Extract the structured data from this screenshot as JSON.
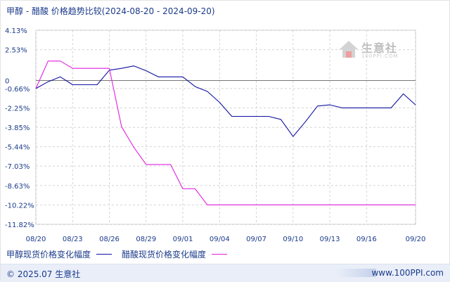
{
  "title": "甲醇 - 醋酸 价格趋势比较(2024-08-20 - 2024-09-20)",
  "watermark": {
    "name": "生意社",
    "url": "100PPI.COM"
  },
  "footer": {
    "copyright": "© 2025.07 生意社",
    "site": "www.100PPI.com"
  },
  "colors": {
    "series1": "#1010a0",
    "series2": "#e020e0",
    "zero_line": "#777777",
    "grid": "#d4d4d4",
    "axis_text": "#1a3a8a"
  },
  "chart_data": {
    "type": "line",
    "title": "甲醇 - 醋酸 价格趋势比较(2024-08-20 - 2024-09-20)",
    "xlabel": "",
    "ylabel": "",
    "x_ticks": [
      "08/20",
      "08/23",
      "08/26",
      "08/29",
      "09/01",
      "09/04",
      "09/07",
      "09/10",
      "09/13",
      "09/16",
      "09/20"
    ],
    "y_ticks": [
      "4.13%",
      "2.53%",
      "0",
      "-0.66%",
      "-2.25%",
      "-3.85%",
      "-5.44%",
      "-7.03%",
      "-8.63%",
      "-10.22%",
      "-11.82%"
    ],
    "ylim": [
      -11.82,
      4.13
    ],
    "grid": true,
    "legend_position": "bottom",
    "dates": [
      "08/20",
      "08/21",
      "08/22",
      "08/23",
      "08/24",
      "08/25",
      "08/26",
      "08/27",
      "08/28",
      "08/29",
      "08/30",
      "08/31",
      "09/01",
      "09/02",
      "09/03",
      "09/04",
      "09/05",
      "09/06",
      "09/07",
      "09/08",
      "09/09",
      "09/10",
      "09/11",
      "09/12",
      "09/13",
      "09/14",
      "09/15",
      "09/16",
      "09/17",
      "09/18",
      "09/19",
      "09/20"
    ],
    "series": [
      {
        "name": "甲醇现货价格变化幅度",
        "values": [
          -0.66,
          -0.1,
          0.3,
          -0.35,
          -0.35,
          -0.35,
          0.85,
          1.0,
          1.2,
          0.8,
          0.3,
          0.3,
          0.3,
          -0.5,
          -0.9,
          -1.8,
          -2.95,
          -2.95,
          -2.95,
          -2.95,
          -3.2,
          -4.6,
          -3.4,
          -2.1,
          -2.0,
          -2.25,
          -2.25,
          -2.25,
          -2.25,
          -2.25,
          -1.1,
          -2.0
        ]
      },
      {
        "name": "醋酸现货价格变化幅度",
        "values": [
          -0.66,
          1.6,
          1.6,
          1.0,
          1.0,
          1.0,
          1.0,
          -3.8,
          -5.5,
          -6.9,
          -6.9,
          -6.9,
          -8.9,
          -8.9,
          -10.22,
          -10.22,
          -10.22,
          -10.22,
          -10.22,
          -10.22,
          -10.22,
          -10.22,
          -10.22,
          -10.22,
          -10.22,
          -10.22,
          -10.22,
          -10.22,
          -10.22,
          -10.22,
          -10.22,
          -10.22
        ]
      }
    ]
  }
}
